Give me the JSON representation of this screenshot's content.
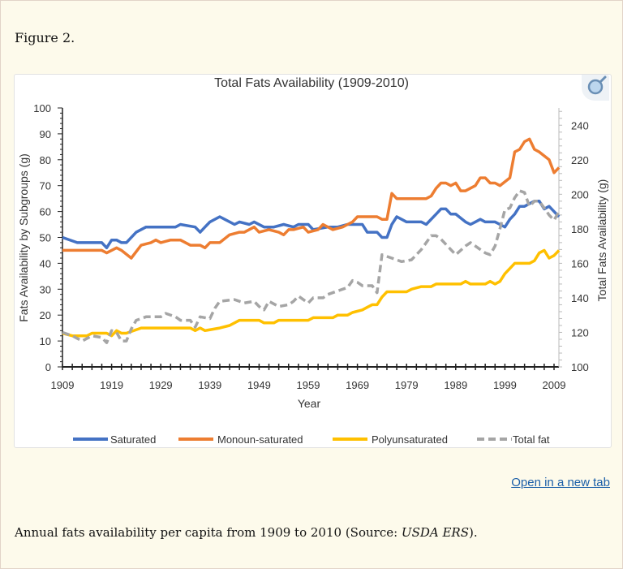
{
  "figure_label": "Figure 2.",
  "open_link": "Open in a new tab",
  "caption": {
    "text": "Annual fats availability per capita from 1909 to 2010 (Source: ",
    "source": "USDA ERS",
    "end": ")."
  },
  "zoom_icon": "magnifier-icon",
  "chart_data": {
    "type": "line",
    "title": "Total Fats Availability (1909-2010)",
    "xlabel": "Year",
    "ylabel": "Fats Availability by Subgroups (g)",
    "ylabel_right": "Total Fats Availability (g)",
    "xlim": [
      1909,
      2010
    ],
    "ylim": [
      0,
      100
    ],
    "ylim_right": [
      100,
      250
    ],
    "x_ticks": [
      1909,
      1919,
      1929,
      1939,
      1949,
      1959,
      1969,
      1979,
      1989,
      1999,
      2009
    ],
    "y_ticks": [
      0,
      10,
      20,
      30,
      40,
      50,
      60,
      70,
      80,
      90,
      100
    ],
    "y_ticks_right": [
      100,
      120,
      140,
      160,
      180,
      200,
      220,
      240
    ],
    "grid": false,
    "legend": "bottom",
    "series": [
      {
        "name": "Saturated",
        "axis": "left",
        "color": "#4472c4",
        "dashed": false,
        "points": [
          [
            1909,
            50
          ],
          [
            1912,
            48
          ],
          [
            1917,
            48
          ],
          [
            1918,
            46
          ],
          [
            1919,
            49
          ],
          [
            1920,
            49
          ],
          [
            1921,
            48
          ],
          [
            1922,
            48
          ],
          [
            1924,
            52
          ],
          [
            1926,
            54
          ],
          [
            1932,
            54
          ],
          [
            1933,
            55
          ],
          [
            1936,
            54
          ],
          [
            1937,
            52
          ],
          [
            1938,
            54
          ],
          [
            1939,
            56
          ],
          [
            1941,
            58
          ],
          [
            1942,
            57
          ],
          [
            1944,
            55
          ],
          [
            1945,
            56
          ],
          [
            1947,
            55
          ],
          [
            1948,
            56
          ],
          [
            1950,
            54
          ],
          [
            1952,
            54
          ],
          [
            1954,
            55
          ],
          [
            1956,
            54
          ],
          [
            1957,
            55
          ],
          [
            1959,
            55
          ],
          [
            1960,
            53
          ],
          [
            1963,
            54
          ],
          [
            1965,
            54
          ],
          [
            1967,
            55
          ],
          [
            1970,
            55
          ],
          [
            1971,
            52
          ],
          [
            1973,
            52
          ],
          [
            1974,
            50
          ],
          [
            1975,
            50
          ],
          [
            1976,
            55
          ],
          [
            1977,
            58
          ],
          [
            1978,
            57
          ],
          [
            1979,
            56
          ],
          [
            1982,
            56
          ],
          [
            1983,
            55
          ],
          [
            1985,
            59
          ],
          [
            1986,
            61
          ],
          [
            1987,
            61
          ],
          [
            1988,
            59
          ],
          [
            1989,
            59
          ],
          [
            1991,
            56
          ],
          [
            1992,
            55
          ],
          [
            1993,
            56
          ],
          [
            1994,
            57
          ],
          [
            1995,
            56
          ],
          [
            1997,
            56
          ],
          [
            1998,
            55
          ],
          [
            1999,
            54
          ],
          [
            2000,
            57
          ],
          [
            2001,
            59
          ],
          [
            2002,
            62
          ],
          [
            2003,
            62
          ],
          [
            2005,
            64
          ],
          [
            2006,
            64
          ],
          [
            2007,
            61
          ],
          [
            2008,
            62
          ],
          [
            2009,
            60
          ],
          [
            2010,
            58
          ]
        ]
      },
      {
        "name": "Monoun-saturated",
        "axis": "left",
        "color": "#ed7d31",
        "dashed": false,
        "points": [
          [
            1909,
            45
          ],
          [
            1911,
            45
          ],
          [
            1913,
            45
          ],
          [
            1917,
            45
          ],
          [
            1918,
            44
          ],
          [
            1920,
            46
          ],
          [
            1921,
            45
          ],
          [
            1923,
            42
          ],
          [
            1925,
            47
          ],
          [
            1927,
            48
          ],
          [
            1928,
            49
          ],
          [
            1929,
            48
          ],
          [
            1931,
            49
          ],
          [
            1933,
            49
          ],
          [
            1935,
            47
          ],
          [
            1937,
            47
          ],
          [
            1938,
            46
          ],
          [
            1939,
            48
          ],
          [
            1941,
            48
          ],
          [
            1943,
            51
          ],
          [
            1945,
            52
          ],
          [
            1946,
            52
          ],
          [
            1948,
            54
          ],
          [
            1949,
            52
          ],
          [
            1951,
            53
          ],
          [
            1953,
            52
          ],
          [
            1954,
            51
          ],
          [
            1955,
            53
          ],
          [
            1956,
            53
          ],
          [
            1958,
            54
          ],
          [
            1959,
            52
          ],
          [
            1961,
            53
          ],
          [
            1962,
            55
          ],
          [
            1964,
            53
          ],
          [
            1966,
            54
          ],
          [
            1967,
            55
          ],
          [
            1968,
            56
          ],
          [
            1969,
            58
          ],
          [
            1973,
            58
          ],
          [
            1974,
            57
          ],
          [
            1975,
            57
          ],
          [
            1976,
            67
          ],
          [
            1977,
            65
          ],
          [
            1983,
            65
          ],
          [
            1984,
            66
          ],
          [
            1985,
            69
          ],
          [
            1986,
            71
          ],
          [
            1987,
            71
          ],
          [
            1988,
            70
          ],
          [
            1989,
            71
          ],
          [
            1990,
            68
          ],
          [
            1991,
            68
          ],
          [
            1993,
            70
          ],
          [
            1994,
            73
          ],
          [
            1995,
            73
          ],
          [
            1996,
            71
          ],
          [
            1997,
            71
          ],
          [
            1998,
            70
          ],
          [
            2000,
            73
          ],
          [
            2001,
            83
          ],
          [
            2002,
            84
          ],
          [
            2003,
            87
          ],
          [
            2004,
            88
          ],
          [
            2005,
            84
          ],
          [
            2006,
            83
          ],
          [
            2008,
            80
          ],
          [
            2009,
            75
          ],
          [
            2010,
            77
          ]
        ]
      },
      {
        "name": "Polyunsaturated",
        "axis": "left",
        "color": "#ffc000",
        "dashed": false,
        "points": [
          [
            1909,
            13
          ],
          [
            1911,
            12
          ],
          [
            1914,
            12
          ],
          [
            1915,
            13
          ],
          [
            1918,
            13
          ],
          [
            1919,
            12
          ],
          [
            1920,
            14
          ],
          [
            1921,
            13
          ],
          [
            1922,
            13
          ],
          [
            1925,
            15
          ],
          [
            1935,
            15
          ],
          [
            1936,
            14
          ],
          [
            1937,
            15
          ],
          [
            1938,
            14
          ],
          [
            1941,
            15
          ],
          [
            1943,
            16
          ],
          [
            1945,
            18
          ],
          [
            1949,
            18
          ],
          [
            1950,
            17
          ],
          [
            1952,
            17
          ],
          [
            1953,
            18
          ],
          [
            1959,
            18
          ],
          [
            1960,
            19
          ],
          [
            1964,
            19
          ],
          [
            1965,
            20
          ],
          [
            1967,
            20
          ],
          [
            1968,
            21
          ],
          [
            1970,
            22
          ],
          [
            1971,
            23
          ],
          [
            1972,
            24
          ],
          [
            1973,
            24
          ],
          [
            1974,
            27
          ],
          [
            1975,
            29
          ],
          [
            1979,
            29
          ],
          [
            1980,
            30
          ],
          [
            1982,
            31
          ],
          [
            1984,
            31
          ],
          [
            1985,
            32
          ],
          [
            1990,
            32
          ],
          [
            1991,
            33
          ],
          [
            1992,
            32
          ],
          [
            1995,
            32
          ],
          [
            1996,
            33
          ],
          [
            1997,
            32
          ],
          [
            1998,
            33
          ],
          [
            1999,
            36
          ],
          [
            2000,
            38
          ],
          [
            2001,
            40
          ],
          [
            2004,
            40
          ],
          [
            2005,
            41
          ],
          [
            2006,
            44
          ],
          [
            2007,
            45
          ],
          [
            2008,
            42
          ],
          [
            2009,
            43
          ],
          [
            2010,
            45
          ]
        ]
      },
      {
        "name": "Total fat",
        "axis": "right",
        "color": "#a5a5a5",
        "dashed": true,
        "points": [
          [
            1909,
            120
          ],
          [
            1911,
            118
          ],
          [
            1913,
            115
          ],
          [
            1915,
            118
          ],
          [
            1917,
            117
          ],
          [
            1918,
            114
          ],
          [
            1919,
            121
          ],
          [
            1920,
            120
          ],
          [
            1921,
            115
          ],
          [
            1922,
            115
          ],
          [
            1923,
            122
          ],
          [
            1924,
            127
          ],
          [
            1926,
            129
          ],
          [
            1929,
            129
          ],
          [
            1930,
            131
          ],
          [
            1932,
            129
          ],
          [
            1933,
            127
          ],
          [
            1935,
            127
          ],
          [
            1936,
            123
          ],
          [
            1937,
            129
          ],
          [
            1939,
            128
          ],
          [
            1940,
            134
          ],
          [
            1941,
            138
          ],
          [
            1944,
            139
          ],
          [
            1946,
            137
          ],
          [
            1948,
            138
          ],
          [
            1949,
            135
          ],
          [
            1950,
            133
          ],
          [
            1951,
            138
          ],
          [
            1953,
            135
          ],
          [
            1955,
            136
          ],
          [
            1956,
            138
          ],
          [
            1957,
            141
          ],
          [
            1958,
            139
          ],
          [
            1959,
            137
          ],
          [
            1960,
            140
          ],
          [
            1962,
            140
          ],
          [
            1963,
            142
          ],
          [
            1965,
            144
          ],
          [
            1967,
            146
          ],
          [
            1968,
            150
          ],
          [
            1969,
            149
          ],
          [
            1970,
            147
          ],
          [
            1972,
            147
          ],
          [
            1973,
            143
          ],
          [
            1974,
            165
          ],
          [
            1976,
            163
          ],
          [
            1978,
            161
          ],
          [
            1980,
            162
          ],
          [
            1982,
            168
          ],
          [
            1984,
            176
          ],
          [
            1985,
            176
          ],
          [
            1986,
            174
          ],
          [
            1988,
            168
          ],
          [
            1989,
            165
          ],
          [
            1991,
            170
          ],
          [
            1992,
            172
          ],
          [
            1994,
            168
          ],
          [
            1995,
            166
          ],
          [
            1996,
            165
          ],
          [
            1997,
            170
          ],
          [
            1998,
            180
          ],
          [
            1999,
            191
          ],
          [
            2000,
            192
          ],
          [
            2001,
            198
          ],
          [
            2002,
            202
          ],
          [
            2003,
            201
          ],
          [
            2004,
            193
          ],
          [
            2005,
            196
          ],
          [
            2006,
            196
          ],
          [
            2007,
            192
          ],
          [
            2008,
            188
          ],
          [
            2009,
            185
          ],
          [
            2010,
            190
          ]
        ]
      }
    ]
  }
}
